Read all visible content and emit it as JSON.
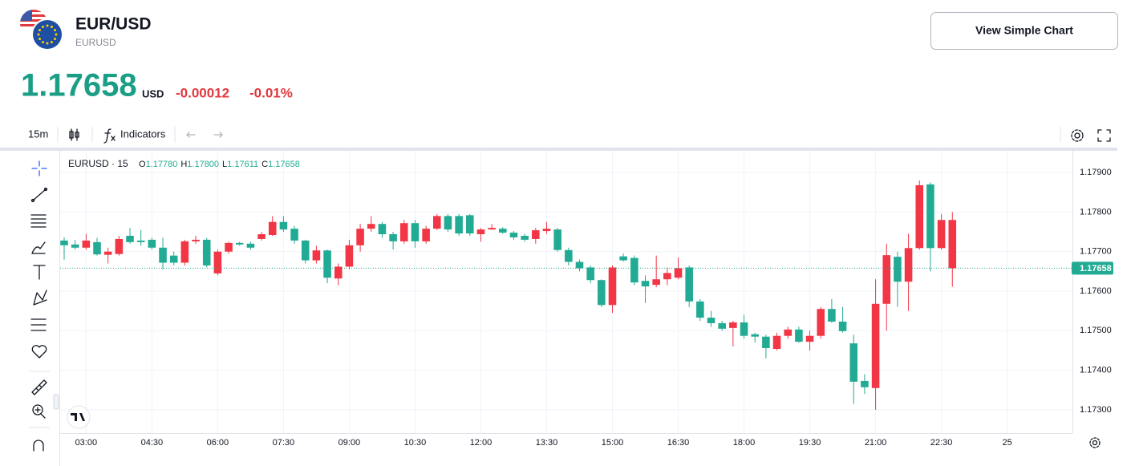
{
  "header": {
    "symbol": "EUR/USD",
    "ticker": "EURUSD",
    "price": "1.17658",
    "currency": "USD",
    "change": "-0.00012",
    "change_percent": "-0.01%"
  },
  "button": "View Simple Chart",
  "toolbar": {
    "interval": "15m",
    "indicators": "Indicators"
  },
  "legend": {
    "title": "EURUSD · 15",
    "open_label": "O",
    "open": "1.17780",
    "high_label": "H",
    "high": "1.17800",
    "low_label": "L",
    "low": "1.17611",
    "close_label": "C",
    "close": "1.17658"
  },
  "chart_data": {
    "type": "candlestick",
    "up_color": "#22ab94",
    "down_color": "#f23645",
    "grid": true,
    "categories": [
      null,
      null,
      "03:00",
      null,
      null,
      null,
      null,
      null,
      "04:30",
      null,
      null,
      null,
      null,
      null,
      "06:00",
      null,
      null,
      null,
      null,
      null,
      "07:30",
      null,
      null,
      null,
      null,
      null,
      "09:00",
      null,
      null,
      null,
      null,
      null,
      "10:30",
      null,
      null,
      null,
      null,
      null,
      "12:00",
      null,
      null,
      null,
      null,
      null,
      "13:30",
      null,
      null,
      null,
      null,
      null,
      "15:00",
      null,
      null,
      null,
      null,
      null,
      "16:30",
      null,
      null,
      null,
      null,
      null,
      "18:00",
      null,
      null,
      null,
      null,
      null,
      "19:30",
      null,
      null,
      null,
      null,
      null,
      "21:00",
      null,
      null,
      null,
      null,
      null,
      "22:30",
      null,
      null,
      null,
      null,
      null,
      "25"
    ],
    "open": [
      1.17716,
      1.1771,
      1.17728,
      1.17693,
      1.177,
      1.17732,
      1.17724,
      1.17724,
      1.1771,
      1.17672,
      1.17672,
      1.17726,
      1.1773,
      1.17665,
      1.177,
      1.17722,
      1.17718,
      1.1771,
      1.17744,
      1.17775,
      1.17756,
      1.17728,
      1.17678,
      1.17703,
      1.17634,
      1.17662,
      1.17716,
      1.17758,
      1.1777,
      1.17744,
      1.17726,
      1.17772,
      1.17726,
      1.17758,
      1.1779,
      1.17756,
      1.17746,
      1.17746,
      1.17756,
      1.1776,
      1.17748,
      1.17736,
      1.1773,
      1.17754,
      1.17758,
      1.17704,
      1.17674,
      1.17658,
      1.17628,
      1.17565,
      1.1766,
      1.17678,
      1.17622,
      1.17612,
      1.1763,
      1.17646,
      1.17658,
      1.17574,
      1.17533,
      1.17519,
      1.17505,
      1.17521,
      1.17487,
      1.17485,
      1.17456,
      1.17487,
      1.17503,
      1.17472,
      1.17487,
      1.17555,
      1.17523,
      1.17499,
      1.17371,
      1.17357,
      1.17568,
      1.17691,
      1.17624,
      1.17709,
      1.17868,
      1.17709,
      1.1778,
      1.1778,
      null,
      null,
      null,
      null,
      null
    ],
    "high": [
      1.17736,
      1.1773,
      1.17745,
      1.17735,
      1.1771,
      1.1774,
      1.1776,
      1.17755,
      1.17735,
      1.17735,
      1.177,
      1.1773,
      1.1774,
      1.17735,
      1.17705,
      1.17725,
      1.17725,
      1.17725,
      1.1775,
      1.1779,
      1.1779,
      1.17765,
      1.1773,
      1.17715,
      1.17705,
      1.1767,
      1.1773,
      1.1777,
      1.1779,
      1.17775,
      1.1775,
      1.1778,
      1.1778,
      1.17765,
      1.17795,
      1.17795,
      1.17795,
      1.17795,
      1.1776,
      1.1777,
      1.17762,
      1.17752,
      1.17745,
      1.1776,
      1.17775,
      1.1776,
      1.1771,
      1.1768,
      1.17665,
      1.1763,
      1.17665,
      1.17695,
      1.1769,
      1.1764,
      1.1769,
      1.1766,
      1.17685,
      1.17665,
      1.1758,
      1.1755,
      1.17525,
      1.17525,
      1.1754,
      1.17495,
      1.1749,
      1.17495,
      1.1751,
      1.1751,
      1.175,
      1.1756,
      1.1758,
      1.1756,
      1.1749,
      1.1739,
      1.1763,
      1.1772,
      1.177,
      1.17745,
      1.1788,
      1.17875,
      1.17795,
      1.178,
      null,
      null,
      null,
      null,
      null
    ],
    "low": [
      1.1768,
      1.17705,
      1.17705,
      1.1769,
      1.1767,
      1.1769,
      1.1772,
      1.17715,
      1.17705,
      1.17655,
      1.17665,
      1.17665,
      1.1772,
      1.1766,
      1.1764,
      1.17695,
      1.17715,
      1.17705,
      1.17728,
      1.1774,
      1.1775,
      1.1772,
      1.1767,
      1.1767,
      1.1762,
      1.17615,
      1.17655,
      1.177,
      1.1775,
      1.17735,
      1.17705,
      1.1772,
      1.1771,
      1.1772,
      1.17755,
      1.1775,
      1.1774,
      1.1774,
      1.17725,
      1.17755,
      1.17745,
      1.1773,
      1.17725,
      1.1772,
      1.17745,
      1.177,
      1.17665,
      1.1765,
      1.1762,
      1.1756,
      1.17545,
      1.17675,
      1.17615,
      1.1757,
      1.1761,
      1.17615,
      1.1763,
      1.1756,
      1.17525,
      1.1751,
      1.175,
      1.1746,
      1.1748,
      1.1747,
      1.1743,
      1.1745,
      1.1748,
      1.1747,
      1.1745,
      1.1748,
      1.1752,
      1.17495,
      1.17315,
      1.1734,
      1.173,
      1.175,
      1.1756,
      1.1755,
      1.17705,
      1.1765,
      1.17705,
      1.17611,
      null,
      null,
      null,
      null,
      null
    ],
    "close": [
      1.17728,
      1.17718,
      1.1771,
      1.17724,
      1.17692,
      1.17694,
      1.1774,
      1.17728,
      1.1773,
      1.1771,
      1.1769,
      1.17672,
      1.17726,
      1.1773,
      1.17645,
      1.177,
      1.17722,
      1.1772,
      1.17732,
      1.17742,
      1.17775,
      1.17758,
      1.17728,
      1.17678,
      1.17703,
      1.17632,
      1.17662,
      1.17716,
      1.17758,
      1.1777,
      1.17744,
      1.17726,
      1.17772,
      1.17726,
      1.17758,
      1.1779,
      1.1779,
      1.17792,
      1.17744,
      1.17756,
      1.17758,
      1.17748,
      1.1774,
      1.17732,
      1.17752,
      1.17756,
      1.17704,
      1.17674,
      1.1766,
      1.17628,
      1.17565,
      1.17688,
      1.17684,
      1.17626,
      1.17616,
      1.1763,
      1.17634,
      1.1766,
      1.17574,
      1.17533,
      1.17519,
      1.17507,
      1.17521,
      1.17491,
      1.17485,
      1.17454,
      1.17487,
      1.17503,
      1.17472,
      1.17487,
      1.17555,
      1.17523,
      1.17468,
      1.17373,
      1.17355,
      1.17568,
      1.17687,
      1.17624,
      1.17709,
      1.1787,
      1.17709,
      1.17658,
      null,
      null,
      null,
      null,
      null
    ],
    "ylim": [
      1.17241,
      1.17955
    ],
    "yticks": [
      {
        "value": 1.173,
        "label": "1.17300"
      },
      {
        "value": 1.174,
        "label": "1.17400"
      },
      {
        "value": 1.175,
        "label": "1.17500"
      },
      {
        "value": 1.176,
        "label": "1.17600"
      },
      {
        "value": 1.177,
        "label": "1.17700"
      },
      {
        "value": 1.178,
        "label": "1.17800"
      },
      {
        "value": 1.179,
        "label": "1.17900"
      }
    ],
    "last_price": {
      "value": 1.17658,
      "label": "1.17658"
    }
  }
}
